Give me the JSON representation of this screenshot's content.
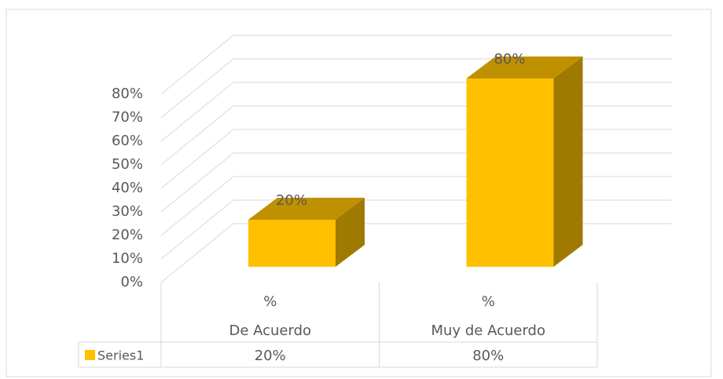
{
  "chart_data": {
    "type": "bar3d",
    "categories": [
      "De Acuerdo",
      "Muy de Acuerdo"
    ],
    "subcategories": [
      "%",
      "%"
    ],
    "series": [
      {
        "name": "Series1",
        "color": "#ffc000",
        "values": [
          20,
          80
        ],
        "value_labels": [
          "20%",
          "80%"
        ]
      }
    ],
    "ylim": [
      0,
      80
    ],
    "yticks": [
      {
        "value": 0,
        "label": "0%"
      },
      {
        "value": 10,
        "label": "10%"
      },
      {
        "value": 20,
        "label": "20%"
      },
      {
        "value": 30,
        "label": "30%"
      },
      {
        "value": 40,
        "label": "40%"
      },
      {
        "value": 50,
        "label": "50%"
      },
      {
        "value": 60,
        "label": "60%"
      },
      {
        "value": 70,
        "label": "70%"
      },
      {
        "value": 80,
        "label": "80%"
      }
    ],
    "grid": true,
    "data_table": true
  }
}
